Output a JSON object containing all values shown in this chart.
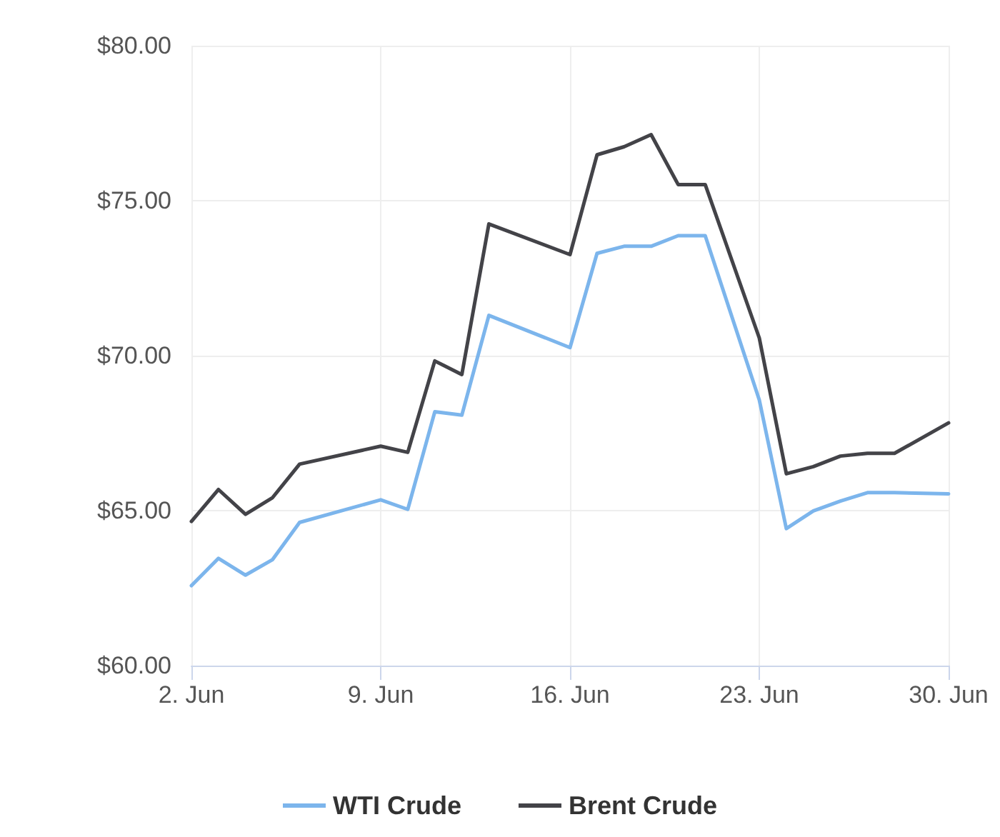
{
  "chart_data": {
    "type": "line",
    "x": [
      "--06-02",
      "--06-03",
      "--06-04",
      "--06-05",
      "--06-06",
      "--06-09",
      "--06-10",
      "--06-11",
      "--06-12",
      "--06-13",
      "--06-16",
      "--06-17",
      "--06-18",
      "--06-19",
      "--06-20",
      "--06-21",
      "--06-23",
      "--06-24",
      "--06-25",
      "--06-26",
      "--06-27",
      "--06-28",
      "--06-30"
    ],
    "series": [
      {
        "name": "WTI Crude",
        "color": "#7cb5ec",
        "values": [
          62.58,
          63.46,
          62.92,
          63.42,
          64.62,
          65.35,
          65.04,
          68.19,
          68.08,
          71.3,
          70.26,
          73.3,
          73.53,
          73.53,
          73.87,
          73.87,
          68.57,
          64.42,
          64.99,
          65.31,
          65.58,
          65.58,
          65.54
        ]
      },
      {
        "name": "Brent Crude",
        "color": "#434348",
        "values": [
          64.65,
          65.68,
          64.88,
          65.42,
          66.5,
          67.08,
          66.88,
          69.83,
          69.39,
          74.25,
          73.26,
          76.48,
          76.74,
          77.13,
          75.52,
          75.52,
          70.57,
          66.19,
          66.42,
          66.76,
          66.85,
          66.85,
          67.83
        ]
      }
    ],
    "xlim": [
      "--06-02",
      "--06-30"
    ],
    "xticks": [
      {
        "value": "--06-02",
        "label": "2. Jun"
      },
      {
        "value": "--06-09",
        "label": "9. Jun"
      },
      {
        "value": "--06-16",
        "label": "16. Jun"
      },
      {
        "value": "--06-23",
        "label": "23. Jun"
      },
      {
        "value": "--06-30",
        "label": "30. Jun"
      }
    ],
    "ylim": [
      60,
      80
    ],
    "yticks": [
      {
        "value": 60,
        "label": "$60.00"
      },
      {
        "value": 65,
        "label": "$65.00"
      },
      {
        "value": 70,
        "label": "$70.00"
      },
      {
        "value": 75,
        "label": "$75.00"
      },
      {
        "value": 80,
        "label": "$80.00"
      }
    ],
    "grid": true,
    "legend": "bottom",
    "marker": "none",
    "line_style": "solid"
  }
}
